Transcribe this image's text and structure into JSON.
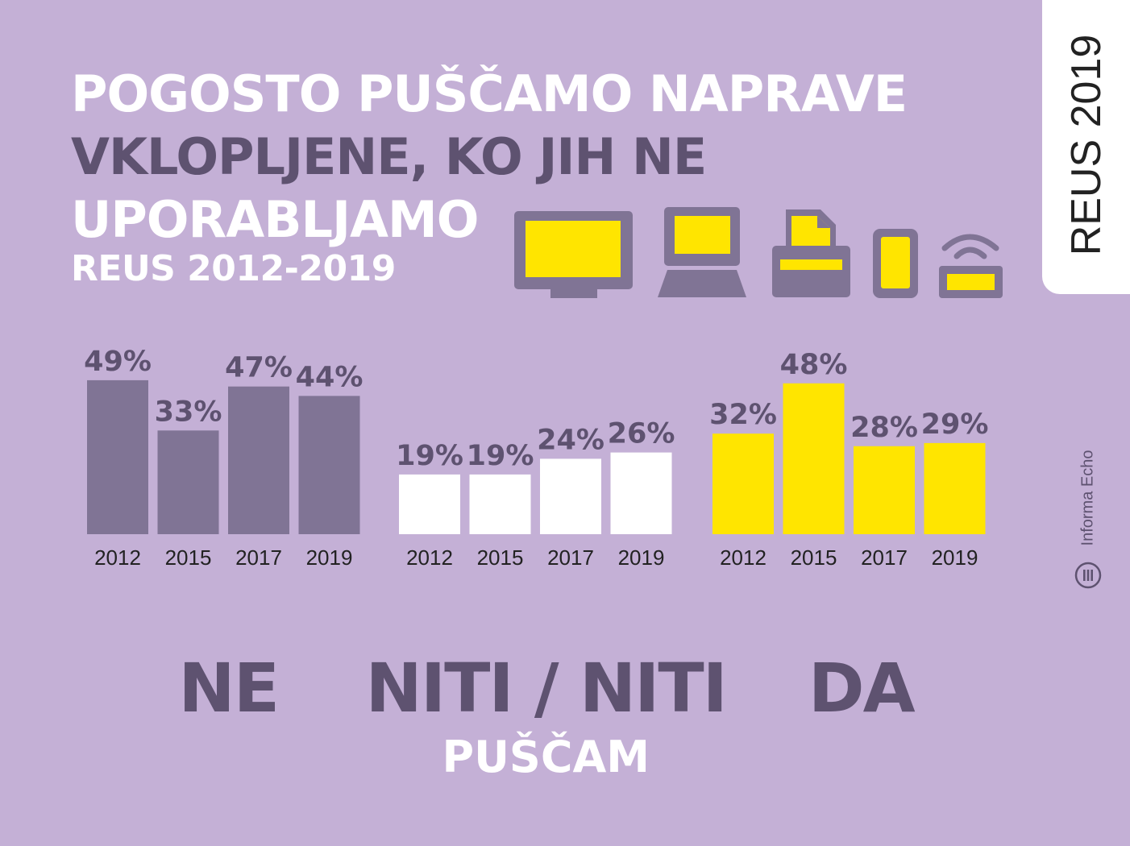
{
  "title": {
    "line1": "POGOSTO PUŠČAMO NAPRAVE",
    "line2": "VKLOPLJENE, KO JIH NE",
    "line3": "UPORABLJAMO"
  },
  "subtitle": "REUS 2012-2019",
  "tab_label": "REUS 2019",
  "credit": "Informa Echo",
  "icons": [
    "monitor-icon",
    "laptop-icon",
    "printer-icon",
    "smartphone-icon",
    "router-icon"
  ],
  "colors": {
    "background": "#c4b0d6",
    "ne": "#807495",
    "niti": "#ffffff",
    "da": "#ffe500",
    "label": "#5e5270"
  },
  "chart_data": {
    "type": "bar",
    "title": "POGOSTO PUŠČAMO NAPRAVE VKLOPLJENE, KO JIH NE UPORABLJAMO",
    "subtitle": "REUS 2012-2019",
    "categories": [
      "2012",
      "2015",
      "2017",
      "2019"
    ],
    "unit": "%",
    "ylim": [
      0,
      55
    ],
    "grid": false,
    "groups": [
      {
        "name": "NE",
        "sublabel": "",
        "color": "#807495",
        "values": [
          49,
          33,
          47,
          44
        ]
      },
      {
        "name": "NITI / NITI",
        "sublabel": "PUŠČAM",
        "color": "#ffffff",
        "values": [
          19,
          19,
          24,
          26
        ]
      },
      {
        "name": "DA",
        "sublabel": "",
        "color": "#ffe500",
        "values": [
          32,
          48,
          28,
          29
        ]
      }
    ]
  }
}
